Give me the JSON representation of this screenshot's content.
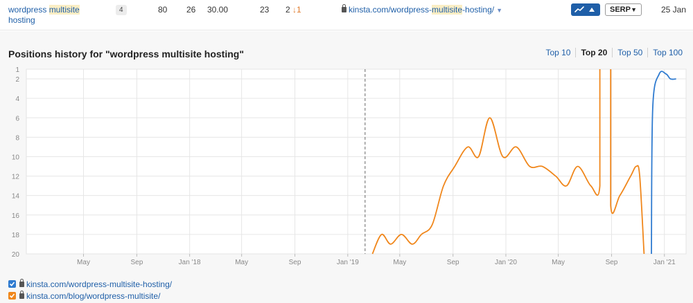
{
  "keyword_row": {
    "keyword_prefix": "wordpress ",
    "keyword_highlight": "multisite",
    "keyword_suffix": "hosting",
    "badge": "4",
    "volume": "80",
    "kd": "26",
    "cpc": "30.00",
    "traffic": "23",
    "position": "2",
    "position_change": "↓1",
    "url_prefix": "kinsta.com/wordpress-",
    "url_highlight": "multisite",
    "url_suffix": "-hosting/",
    "serp_label": "SERP",
    "date": "25 Jan"
  },
  "chart_panel": {
    "title": "Positions history for \"wordpress multisite hosting\"",
    "tabs": [
      {
        "label": "Top 10",
        "active": false
      },
      {
        "label": "Top 20",
        "active": true
      },
      {
        "label": "Top 50",
        "active": false
      },
      {
        "label": "Top 100",
        "active": false
      }
    ]
  },
  "legend": [
    {
      "url": "kinsta.com/wordpress-multisite-hosting/",
      "color": "#2f7bd0"
    },
    {
      "url": "kinsta.com/blog/wordpress-multisite/",
      "color": "#f0871c"
    }
  ],
  "colors": {
    "accent": "#1f5fa8",
    "series_blue": "#2f7bd0",
    "series_orange": "#f0871c",
    "down_arrow": "#e07a2b"
  },
  "chart_data": {
    "type": "line",
    "title": "Positions history for \"wordpress multisite hosting\"",
    "xlabel": "",
    "ylabel": "",
    "y_inverted": true,
    "ylim": [
      1,
      20
    ],
    "y_ticks": [
      1,
      2,
      4,
      6,
      8,
      10,
      12,
      14,
      16,
      18,
      20
    ],
    "x_range": [
      "2016-12-20",
      "2021-02-20"
    ],
    "x_ticks": [
      {
        "date": "2017-05-01",
        "label": "May"
      },
      {
        "date": "2017-09-01",
        "label": "Sep"
      },
      {
        "date": "2018-01-01",
        "label": "Jan '18"
      },
      {
        "date": "2018-05-01",
        "label": "May"
      },
      {
        "date": "2018-09-01",
        "label": "Sep"
      },
      {
        "date": "2019-01-01",
        "label": "Jan '19"
      },
      {
        "date": "2019-05-01",
        "label": "May"
      },
      {
        "date": "2019-09-01",
        "label": "Sep"
      },
      {
        "date": "2020-01-01",
        "label": "Jan '20"
      },
      {
        "date": "2020-05-01",
        "label": "May"
      },
      {
        "date": "2020-09-01",
        "label": "Sep"
      },
      {
        "date": "2021-01-01",
        "label": "Jan '21"
      }
    ],
    "marker_date": "2019-02-10",
    "grid": true,
    "series": [
      {
        "name": "kinsta.com/blog/wordpress-multisite/",
        "color": "#f0871c",
        "segments": [
          [
            [
              "2019-02-27",
              20
            ],
            [
              "2019-03-20",
              18
            ],
            [
              "2019-04-10",
              19
            ],
            [
              "2019-05-05",
              18
            ],
            [
              "2019-05-30",
              19
            ],
            [
              "2019-06-20",
              18
            ],
            [
              "2019-07-15",
              17
            ],
            [
              "2019-08-10",
              13
            ],
            [
              "2019-09-05",
              11
            ],
            [
              "2019-10-05",
              9
            ],
            [
              "2019-10-30",
              10
            ],
            [
              "2019-11-25",
              6
            ],
            [
              "2019-12-25",
              10
            ],
            [
              "2020-01-25",
              9
            ],
            [
              "2020-02-25",
              11
            ],
            [
              "2020-03-25",
              11
            ],
            [
              "2020-04-25",
              12
            ],
            [
              "2020-05-20",
              13
            ],
            [
              "2020-06-15",
              11
            ],
            [
              "2020-07-15",
              13
            ],
            [
              "2020-08-05",
              13
            ],
            [
              "2020-08-05",
              1
            ]
          ],
          [
            [
              "2020-08-30",
              1
            ],
            [
              "2020-08-30",
              15
            ],
            [
              "2020-09-20",
              14
            ],
            [
              "2020-10-15",
              12
            ],
            [
              "2020-10-28",
              11
            ],
            [
              "2020-11-05",
              12
            ],
            [
              "2020-11-15",
              20
            ]
          ]
        ]
      },
      {
        "name": "kinsta.com/wordpress-multisite-hosting/",
        "color": "#2f7bd0",
        "segments": [
          [
            [
              "2020-12-02",
              20
            ],
            [
              "2020-12-05",
              5
            ],
            [
              "2020-12-20",
              1.5
            ],
            [
              "2021-01-05",
              1.5
            ],
            [
              "2021-01-15",
              2
            ],
            [
              "2021-01-28",
              2
            ]
          ]
        ]
      }
    ]
  }
}
